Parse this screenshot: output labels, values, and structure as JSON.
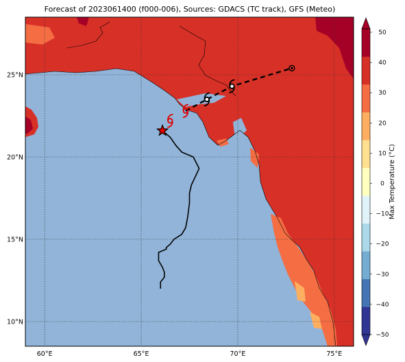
{
  "title": "Forecast of 2023061400 (f000-006), Sources: GDACS (TC track), GFS (Meteo)",
  "colorbar": {
    "label": "Max Temperature (°C)",
    "ticks": [
      "50",
      "40",
      "30",
      "20",
      "10",
      "0",
      "−10",
      "−20",
      "−30",
      "−40",
      "−50"
    ],
    "colors": [
      "#313695",
      "#4575b4",
      "#74add1",
      "#abd9e9",
      "#e0f3f8",
      "#ffffbf",
      "#fee090",
      "#fdae61",
      "#f46d43",
      "#d73027",
      "#a50026"
    ]
  },
  "map": {
    "xticks": [
      "60°E",
      "65°E",
      "70°E",
      "75°E"
    ],
    "yticks": [
      "25°N",
      "20°N",
      "15°N",
      "10°N"
    ],
    "extent": {
      "lon": [
        59,
        76
      ],
      "lat": [
        8.5,
        28.5
      ]
    },
    "ocean_color": "#91b4d8",
    "land_color": "#d73027",
    "hot_color": "#a50026",
    "warm_color": "#f46d43",
    "cool_color": "#fdae61"
  },
  "track": {
    "past": [
      [
        66.0,
        12.0
      ],
      [
        66.0,
        12.4
      ],
      [
        66.2,
        12.7
      ],
      [
        66.2,
        13.0
      ],
      [
        66.1,
        13.3
      ],
      [
        66.0,
        13.5
      ],
      [
        65.9,
        13.7
      ],
      [
        65.9,
        14.2
      ],
      [
        66.3,
        14.4
      ],
      [
        66.3,
        14.5
      ],
      [
        66.5,
        14.7
      ],
      [
        66.7,
        15.0
      ],
      [
        67.1,
        15.3
      ],
      [
        67.3,
        15.7
      ],
      [
        67.4,
        16.3
      ],
      [
        67.5,
        17.2
      ],
      [
        67.5,
        17.8
      ],
      [
        67.6,
        18.3
      ],
      [
        67.8,
        18.8
      ],
      [
        68.0,
        19.3
      ],
      [
        67.7,
        20.0
      ],
      [
        67.1,
        20.3
      ],
      [
        66.8,
        20.7
      ],
      [
        66.5,
        21.2
      ],
      [
        66.1,
        21.6
      ]
    ],
    "current": [
      66.1,
      21.6
    ],
    "forecast_red": [
      [
        66.5,
        22.2
      ],
      [
        67.3,
        22.8
      ]
    ],
    "forecast_black": [
      [
        68.4,
        23.5
      ],
      [
        69.7,
        24.3
      ],
      [
        72.8,
        25.4
      ]
    ]
  }
}
